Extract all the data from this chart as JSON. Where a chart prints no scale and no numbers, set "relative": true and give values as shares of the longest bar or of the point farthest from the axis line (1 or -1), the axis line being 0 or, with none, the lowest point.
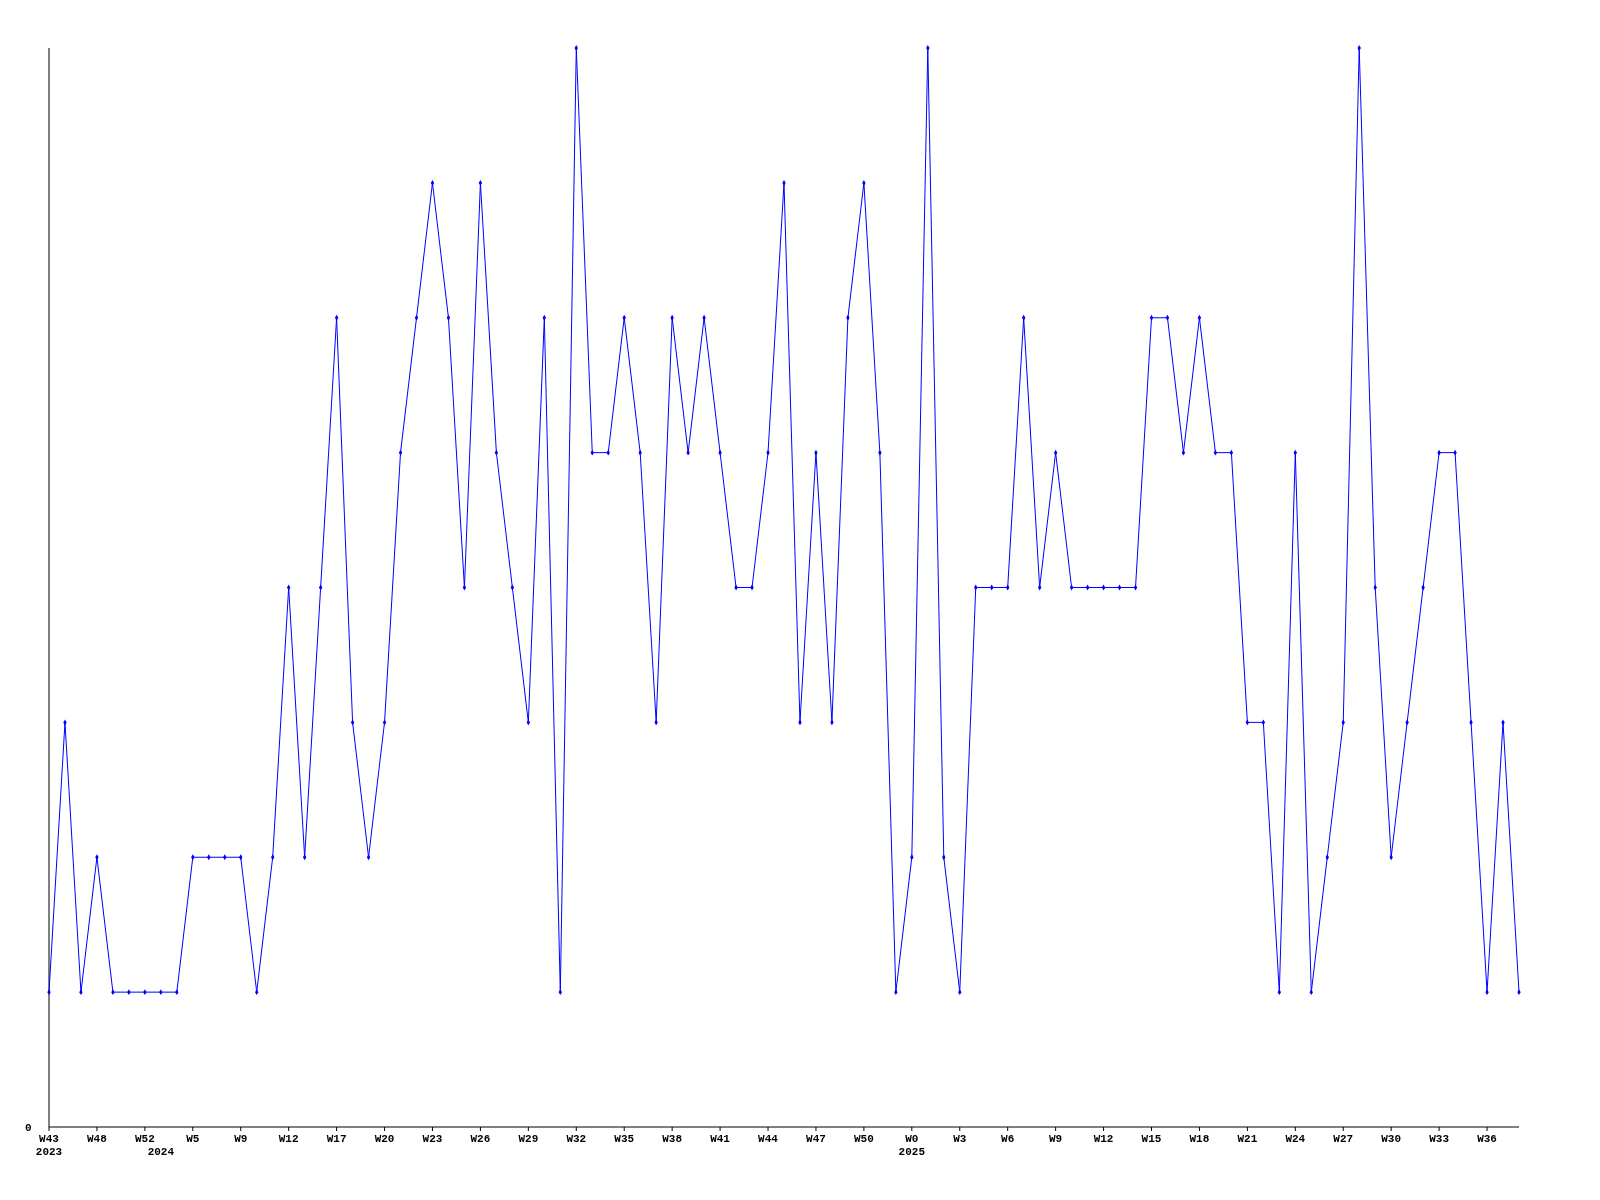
{
  "chart_data": {
    "type": "line",
    "relative": true,
    "marker": "diamond",
    "line_style": "solid",
    "categories": [
      "W43\n2023",
      null,
      null,
      "W48",
      null,
      null,
      "W52",
      null,
      null,
      "W5",
      null,
      null,
      "W9",
      null,
      null,
      "W12",
      null,
      null,
      "W17",
      null,
      null,
      "W20",
      null,
      null,
      "W23",
      null,
      null,
      "W26",
      null,
      null,
      "W29",
      null,
      null,
      "W32",
      null,
      null,
      "W35",
      null,
      null,
      "W38",
      null,
      null,
      "W41",
      null,
      null,
      "W44",
      null,
      null,
      "W47",
      null,
      null,
      "W50",
      null,
      null,
      "W0\n2025",
      null,
      null,
      "W3",
      null,
      null,
      "W6",
      null,
      null,
      "W9",
      null,
      null,
      "W12",
      null,
      null,
      "W15",
      null,
      null,
      "W18",
      null,
      null,
      "W21",
      null,
      null,
      "W24",
      null,
      null,
      "W27",
      null,
      null,
      "W30",
      null,
      null,
      "W33",
      null,
      null,
      "W36",
      null,
      null
    ],
    "series": [
      {
        "color": "#0000ff",
        "values": [
          0.125,
          0.375,
          0.125,
          0.25,
          0.125,
          0.125,
          0.125,
          0.125,
          0.125,
          0.25,
          0.25,
          0.25,
          0.25,
          0.125,
          0.25,
          0.5,
          0.25,
          0.5,
          0.75,
          0.375,
          0.25,
          0.375,
          0.625,
          0.75,
          0.875,
          0.75,
          0.5,
          0.875,
          0.625,
          0.5,
          0.375,
          0.75,
          0.125,
          1,
          0.625,
          0.625,
          0.75,
          0.625,
          0.375,
          0.75,
          0.625,
          0.75,
          0.625,
          0.5,
          0.5,
          0.625,
          0.875,
          0.375,
          0.625,
          0.375,
          0.75,
          0.875,
          0.625,
          0.125,
          0.25,
          1,
          0.25,
          0.125,
          0.5,
          0.5,
          0.5,
          0.75,
          0.5,
          0.625,
          0.5,
          0.5,
          0.5,
          0.5,
          0.5,
          0.75,
          0.75,
          0.625,
          0.75,
          0.625,
          0.625,
          0.375,
          0.375,
          0.125,
          0.625,
          0.125,
          0.25,
          0.375,
          1,
          0.5,
          0.25,
          0.375,
          0.5,
          0.625,
          0.625,
          0.375,
          0.125,
          0.375,
          0.125
        ]
      }
    ],
    "annotations": [
      "0",
      "2024"
    ]
  }
}
